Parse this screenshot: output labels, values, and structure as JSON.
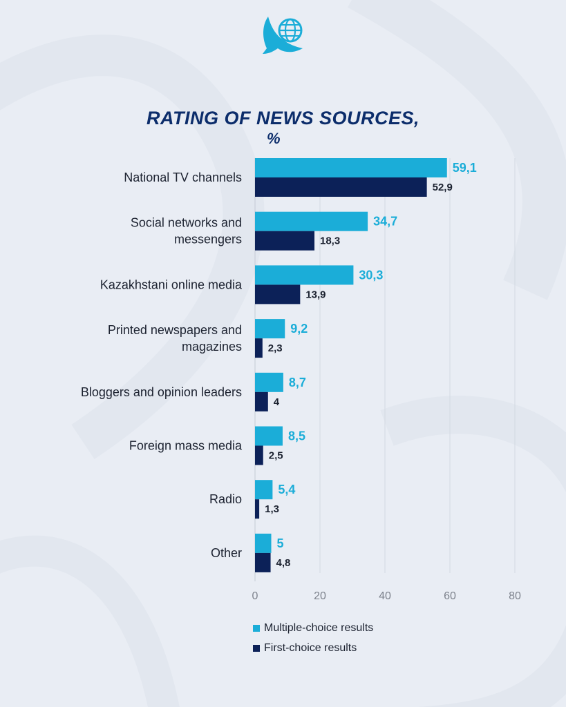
{
  "chart_data": {
    "type": "bar",
    "orientation": "horizontal",
    "title": "RATING OF NEWS SOURCES,",
    "subtitle": "%",
    "categories": [
      [
        "National TV channels"
      ],
      [
        "Social networks and",
        "messengers"
      ],
      [
        "Kazakhstani online media"
      ],
      [
        "Printed newspapers and",
        "magazines"
      ],
      [
        "Bloggers and opinion leaders"
      ],
      [
        "Foreign mass media"
      ],
      [
        "Radio"
      ],
      [
        "Other"
      ]
    ],
    "series": [
      {
        "name": "Multiple-choice results",
        "color": "#1badd8",
        "values": [
          59.1,
          34.7,
          30.3,
          9.2,
          8.7,
          8.5,
          5.4,
          5
        ],
        "labels": [
          "59,1",
          "34,7",
          "30,3",
          "9,2",
          "8,7",
          "8,5",
          "5,4",
          "5"
        ]
      },
      {
        "name": "First-choice results",
        "color": "#0c2158",
        "values": [
          52.9,
          18.3,
          13.9,
          2.3,
          4,
          2.5,
          1.3,
          4.8
        ],
        "labels": [
          "52,9",
          "18,3",
          "13,9",
          "2,3",
          "4",
          "2,5",
          "1,3",
          "4,8"
        ]
      }
    ],
    "xlim": [
      0,
      80
    ],
    "xticks": [
      0,
      20,
      40,
      60,
      80
    ],
    "grid": true,
    "legend": "bottom"
  },
  "colors": {
    "background": "#e9edf4",
    "title": "#0c2d6b",
    "multiple_choice": "#1badd8",
    "first_choice": "#0c2158",
    "logo": "#1badd8"
  },
  "icons": {
    "logo": "eagle-globe-logo"
  }
}
